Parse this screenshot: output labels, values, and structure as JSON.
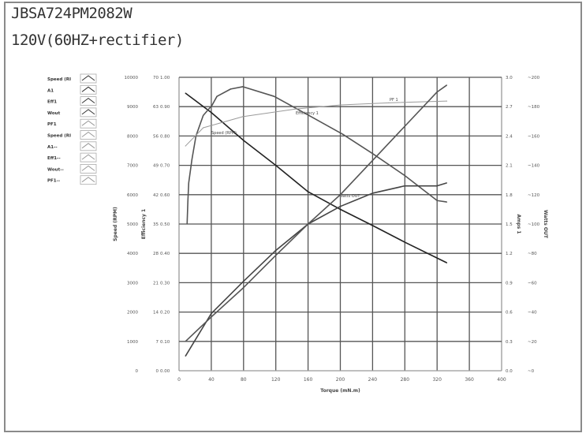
{
  "header": {
    "model": "JBSA724PM2082W",
    "spec": "120V(60HZ+rectifier)"
  },
  "legend": {
    "placement": "left",
    "items": [
      "Speed (RI",
      "A1",
      "Eff1",
      "Wout",
      "PF1",
      "Speed (RI",
      "A1--",
      "Eff1--",
      "Wout--",
      "PF1--"
    ]
  },
  "chart_data": {
    "type": "line",
    "title": "",
    "xlabel": "Torque (mN.m)",
    "xlim": [
      0,
      400
    ],
    "xticks": [
      "0",
      "40",
      "80",
      "120",
      "160",
      "200",
      "240",
      "280",
      "320",
      "360",
      "400"
    ],
    "grid": true,
    "axes": {
      "speed": {
        "label": "Speed (RPM)",
        "lim": [
          0,
          10000
        ],
        "ticks": [
          "0",
          "1000",
          "2000",
          "3000",
          "4000",
          "5000",
          "6000",
          "7000",
          "8000",
          "9000",
          "10000"
        ]
      },
      "secondary": {
        "label": "",
        "lim": [
          0,
          70
        ],
        "ticks": [
          "0",
          "7",
          "14",
          "21",
          "28",
          "35",
          "42",
          "49",
          "56",
          "63",
          "70"
        ]
      },
      "efficiency": {
        "label": "Efficiency 1",
        "lim": [
          0,
          1
        ],
        "ticks": [
          "0.00",
          "0.10",
          "0.20",
          "0.30",
          "0.40",
          "0.50",
          "0.60",
          "0.70",
          "0.80",
          "0.90",
          "1.00"
        ]
      },
      "amps": {
        "label": "Amps 1",
        "lim": [
          0,
          3
        ],
        "ticks": [
          "0.0",
          "0.3",
          "0.6",
          "0.9",
          "1.2",
          "1.5",
          "1.8",
          "2.1",
          "2.4",
          "2.7",
          "3.0"
        ]
      },
      "watts": {
        "label": "Watts OUT",
        "lim": [
          0,
          200
        ],
        "ticks": [
          "0",
          "20",
          "40",
          "60",
          "80",
          "100",
          "120",
          "140",
          "160",
          "180",
          "200"
        ]
      }
    },
    "series": [
      {
        "name": "Speed (RPM)",
        "axis": "speed",
        "color": "#222222",
        "x": [
          8,
          40,
          80,
          120,
          160,
          200,
          240,
          280,
          320,
          332
        ],
        "y": [
          9460,
          8800,
          7850,
          7000,
          6100,
          5500,
          4950,
          4380,
          3840,
          3680
        ]
      },
      {
        "name": "Efficiency 1",
        "axis": "efficiency",
        "color": "#555555",
        "x": [
          10,
          11,
          12,
          16,
          21,
          30,
          41,
          47,
          64,
          79,
          118,
          161,
          203,
          240,
          280,
          320,
          332
        ],
        "y": [
          0.5,
          0.58,
          0.64,
          0.72,
          0.8,
          0.87,
          0.905,
          0.935,
          0.96,
          0.968,
          0.935,
          0.87,
          0.806,
          0.74,
          0.665,
          0.58,
          0.575
        ]
      },
      {
        "name": "PF 1",
        "axis": "efficiency",
        "color": "#9a9a9a",
        "x": [
          8,
          30,
          79,
          145,
          201,
          260,
          332
        ],
        "y": [
          0.766,
          0.828,
          0.866,
          0.892,
          0.906,
          0.913,
          0.919
        ]
      },
      {
        "name": "Watts OUT",
        "axis": "watts",
        "color": "#444444",
        "x": [
          8,
          40,
          80,
          120,
          160,
          200,
          240,
          280,
          320,
          332
        ],
        "y": [
          10,
          39,
          61,
          82,
          100,
          112,
          121,
          126,
          126,
          128
        ]
      },
      {
        "name": "",
        "axis": "amps",
        "color": "#555555",
        "x": [
          8,
          40,
          80,
          120,
          160,
          200,
          240,
          280,
          320,
          332
        ],
        "y": [
          0.3,
          0.55,
          0.85,
          1.18,
          1.5,
          1.8,
          2.15,
          2.5,
          2.85,
          2.92
        ]
      }
    ]
  }
}
